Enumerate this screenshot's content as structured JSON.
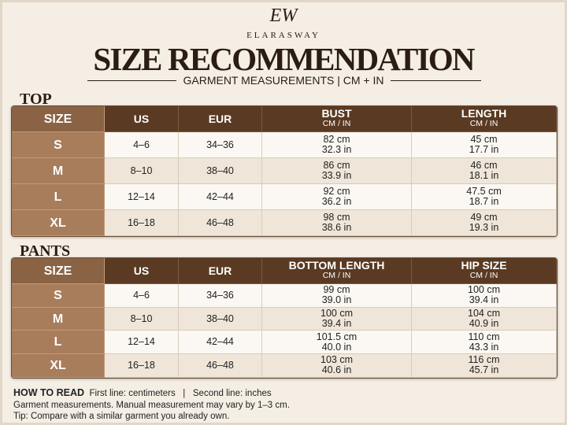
{
  "logo": {
    "monogram": "EW",
    "brand": "ELARASWAY"
  },
  "header": {
    "title": "SIZE RECOMMENDATION",
    "subtitle": "GARMENT MEASUREMENTS | CM + IN"
  },
  "sections": [
    {
      "title": "TOP",
      "headers": [
        {
          "label": "SIZE"
        },
        {
          "label": "US"
        },
        {
          "label": "EUR"
        },
        {
          "label": "BUST",
          "sub": "CM / IN"
        },
        {
          "label": "LENGTH",
          "sub": "CM / IN"
        }
      ],
      "rows": [
        [
          "S",
          "4–6",
          "34–36",
          [
            "82 cm",
            "32.3 in"
          ],
          [
            "45 cm",
            "17.7 in"
          ]
        ],
        [
          "M",
          "8–10",
          "38–40",
          [
            "86 cm",
            "33.9 in"
          ],
          [
            "46 cm",
            "18.1 in"
          ]
        ],
        [
          "L",
          "12–14",
          "42–44",
          [
            "92 cm",
            "36.2 in"
          ],
          [
            "47.5 cm",
            "18.7 in"
          ]
        ],
        [
          "XL",
          "16–18",
          "46–48",
          [
            "98 cm",
            "38.6 in"
          ],
          [
            "49 cm",
            "19.3 in"
          ]
        ]
      ]
    },
    {
      "title": "PANTS",
      "headers": [
        {
          "label": "SIZE"
        },
        {
          "label": "US"
        },
        {
          "label": "EUR"
        },
        {
          "label": "BOTTOM LENGTH",
          "sub": "CM / IN"
        },
        {
          "label": "HIP SIZE",
          "sub": "CM / IN"
        }
      ],
      "rows": [
        [
          "S",
          "4–6",
          "34–36",
          [
            "99 cm",
            "39.0 in"
          ],
          [
            "100 cm",
            "39.4 in"
          ]
        ],
        [
          "M",
          "8–10",
          "38–40",
          [
            "100 cm",
            "39.4 in"
          ],
          [
            "104 cm",
            "40.9 in"
          ]
        ],
        [
          "L",
          "12–14",
          "42–44",
          [
            "101.5 cm",
            "40.0 in"
          ],
          [
            "110 cm",
            "43.3 in"
          ]
        ],
        [
          "XL",
          "16–18",
          "46–48",
          [
            "103 cm",
            "40.6 in"
          ],
          [
            "116 cm",
            "45.7 in"
          ]
        ]
      ]
    }
  ],
  "footer": {
    "heading": "HOW TO READ",
    "legend": "First line: centimeters   |   Second line: inches",
    "note": "Garment measurements. Manual measurement may vary by 1–3 cm.",
    "tip": "Tip: Compare with a similar garment you already own."
  }
}
